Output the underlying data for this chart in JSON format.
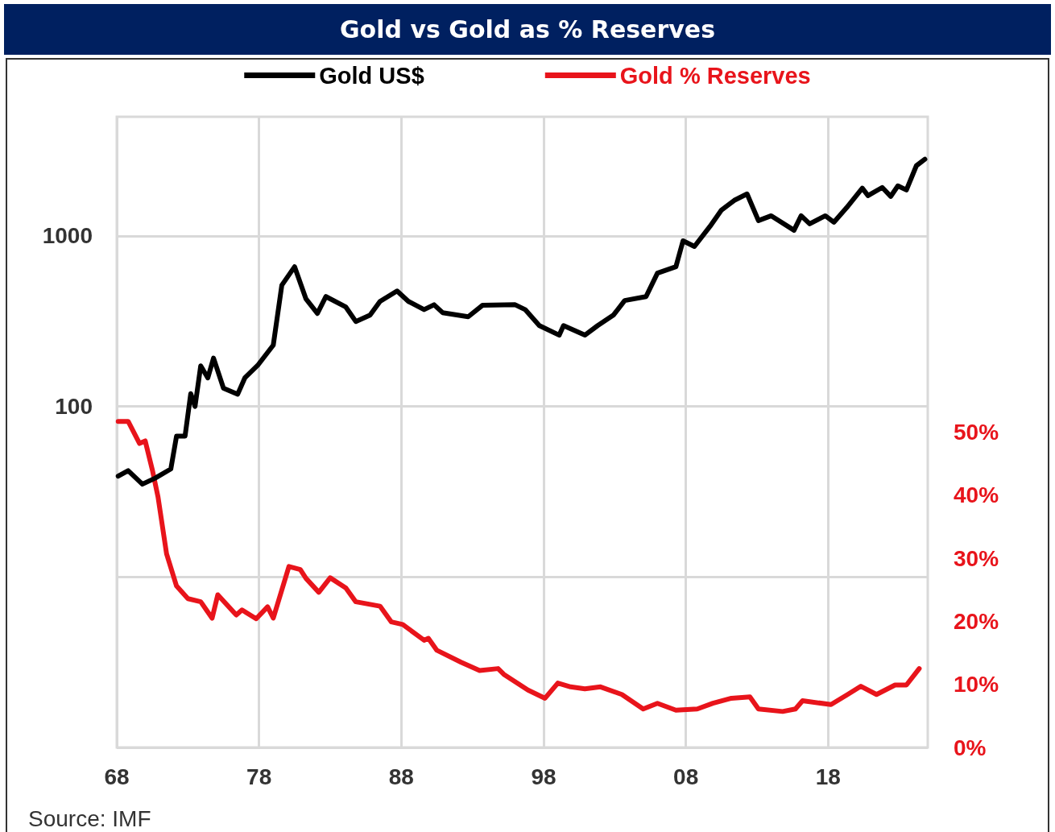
{
  "chart_data": {
    "type": "line",
    "title": "Gold vs Gold as % Reserves",
    "annotations": [
      "Source: IMF"
    ],
    "legend": "top",
    "grid": true,
    "log": true,
    "xlim": [
      1968,
      2025
    ],
    "xticks": [
      {
        "value": 1968,
        "label": "68"
      },
      {
        "value": 1978,
        "label": "78"
      },
      {
        "value": 1988,
        "label": "88"
      },
      {
        "value": 1998,
        "label": "98"
      },
      {
        "value": 2008,
        "label": "08"
      },
      {
        "value": 2018,
        "label": "18"
      }
    ],
    "ylim": [
      1,
      5000
    ],
    "yticks": [
      {
        "value": 1,
        "label": null
      },
      {
        "value": 10,
        "label": null
      },
      100,
      1000
    ],
    "y2lim": [
      0,
      100
    ],
    "y2ticks": [
      {
        "value": 0,
        "label": "0%"
      },
      {
        "value": 10,
        "label": "10%"
      },
      {
        "value": 20,
        "label": "20%"
      },
      {
        "value": 30,
        "label": "30%"
      },
      {
        "value": 40,
        "label": "40%"
      },
      {
        "value": 50,
        "label": "50%"
      }
    ],
    "series": [
      {
        "name": "Gold US$",
        "color": "#000000",
        "x": [
          1968.1,
          1968.8,
          1969.8,
          1970.7,
          1971.8,
          1972.2,
          1972.8,
          1973.2,
          1973.5,
          1973.9,
          1974.4,
          1974.8,
          1975.5,
          1976.5,
          1977,
          1977.9,
          1979,
          1979.6,
          1980.5,
          1981.3,
          1982.1,
          1982.7,
          1984.1,
          1984.8,
          1985.8,
          1986.5,
          1987.7,
          1988.5,
          1989.6,
          1990.3,
          1990.9,
          1992.7,
          1993.7,
          1996,
          1996.7,
          1997.7,
          1999.1,
          1999.4,
          2000.9,
          2001.8,
          2002.9,
          2003.7,
          2005.2,
          2006,
          2007.3,
          2007.8,
          2008.6,
          2009.7,
          2010.5,
          2011.4,
          2012.3,
          2013.1,
          2014,
          2015.6,
          2016.1,
          2016.7,
          2017.8,
          2018.4,
          2019.3,
          2020.4,
          2020.8,
          2021.8,
          2022.4,
          2022.9,
          2023.5,
          2024.2,
          2024.8
        ],
        "values": [
          39,
          42,
          35,
          38,
          43,
          67,
          67,
          119,
          100,
          173,
          147,
          192,
          128,
          118,
          147,
          174,
          229,
          514,
          660,
          427,
          351,
          441,
          383,
          315,
          343,
          413,
          476,
          413,
          370,
          395,
          355,
          336,
          392,
          395,
          370,
          298,
          262,
          298,
          262,
          298,
          343,
          418,
          441,
          605,
          660,
          937,
          868,
          1140,
          1418,
          1617,
          1764,
          1230,
          1313,
          1080,
          1313,
          1178,
          1313,
          1204,
          1465,
          1905,
          1725,
          1925,
          1707,
          1967,
          1860,
          2582,
          2818
        ]
      },
      {
        "name": "Gold % Reserves",
        "color": "#e8141b",
        "axis": "y2",
        "x": [
          1968.1,
          1968.8,
          1969.6,
          1970,
          1970.5,
          1970.9,
          1971.5,
          1972.2,
          1973,
          1973.9,
          1974.7,
          1975.1,
          1976.4,
          1976.8,
          1977.8,
          1978.6,
          1979,
          1980.1,
          1980.9,
          1981.3,
          1982.2,
          1983,
          1984.1,
          1984.8,
          1986.5,
          1987.3,
          1988.1,
          1989.6,
          1989.9,
          1990.5,
          1992.2,
          1993.5,
          1994.8,
          1995.2,
          1996.9,
          1998.1,
          1999,
          1999.9,
          2000.9,
          2002,
          2003.5,
          2005,
          2006,
          2007.3,
          2008.8,
          2009.9,
          2011.2,
          2012.5,
          2013.1,
          2014.8,
          2015.7,
          2016.2,
          2018.2,
          2019.3,
          2020.3,
          2021.4,
          2022.7,
          2023.5,
          2024.4
        ],
        "values": [
          51.7,
          51.7,
          48.2,
          48.6,
          44,
          39.7,
          30.7,
          25.6,
          23.6,
          23.1,
          20.5,
          24.2,
          21,
          21.8,
          20.4,
          22.3,
          20.5,
          28.7,
          28.2,
          26.8,
          24.6,
          26.9,
          25.3,
          23.1,
          22.4,
          19.9,
          19.5,
          17,
          17.3,
          15.4,
          13.5,
          12.2,
          12.5,
          11.6,
          9.1,
          7.8,
          10.2,
          9.6,
          9.3,
          9.6,
          8.4,
          6.1,
          7,
          5.9,
          6.1,
          7,
          7.8,
          8,
          6.1,
          5.7,
          6.1,
          7.4,
          6.8,
          8.3,
          9.7,
          8.4,
          9.9,
          9.9,
          12.5
        ]
      }
    ]
  }
}
